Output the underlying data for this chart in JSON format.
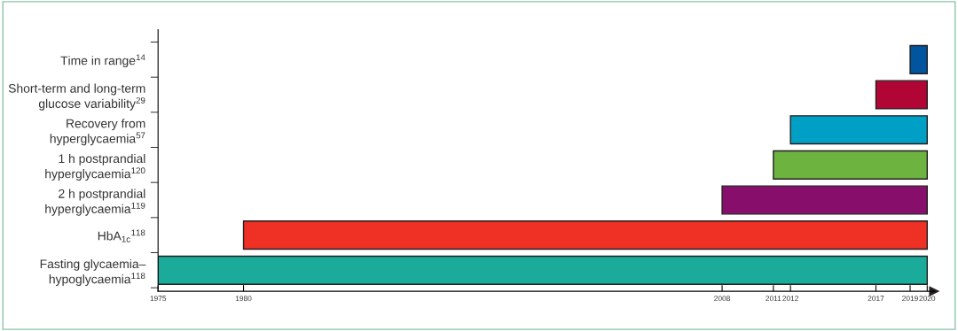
{
  "chart_data": {
    "type": "bar",
    "orientation": "horizontal",
    "categories": [
      "Time in range$^{14}$",
      "Short-term and long-term\nglucose variability$^{29}$",
      "Recovery from\nhyperglycaemia$^{57}$",
      "1 h postprandial\nhyperglycaemia$^{120}$",
      "2 h postprandial\nhyperglycaemia$^{119}$",
      "HbA$_{1c}$$^{118}$",
      "Fasting glycaemia–\nhypoglycaemia$^{118}$"
    ],
    "base": [
      2019,
      2017,
      2012,
      2011,
      2008,
      1980,
      1975
    ],
    "values": [
      1,
      3,
      8,
      9,
      12,
      40,
      45
    ],
    "colors": [
      "#00559e",
      "#b00535",
      "#00a0c6",
      "#6db33f",
      "#880e6c",
      "#ee3124",
      "#1aab9b"
    ],
    "xlim": [
      1975,
      2020.4
    ],
    "xticks": [
      1975,
      1980,
      2008,
      2011,
      2012,
      2017,
      2019,
      2020
    ],
    "grid": false,
    "legend": false
  }
}
